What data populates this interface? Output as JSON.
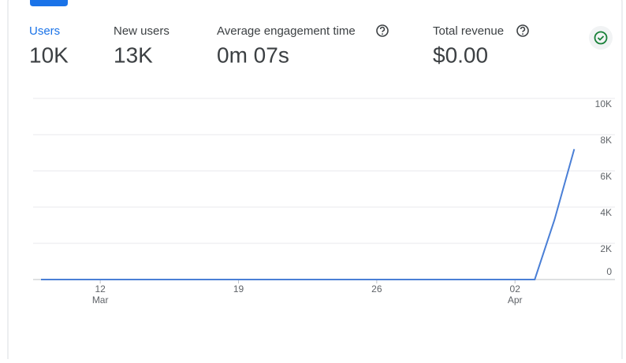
{
  "metrics": [
    {
      "label": "Users",
      "value": "10K"
    },
    {
      "label": "New users",
      "value": "13K"
    },
    {
      "label": "Average engagement time",
      "value": "0m 07s"
    },
    {
      "label": "Total revenue",
      "value": "$0.00"
    }
  ],
  "chart_data": {
    "type": "line",
    "categories": [
      null,
      null,
      null,
      "12",
      null,
      null,
      null,
      null,
      null,
      null,
      "19",
      null,
      null,
      null,
      null,
      null,
      null,
      "26",
      null,
      null,
      null,
      null,
      null,
      null,
      "02",
      null,
      null,
      null
    ],
    "category_months": [
      null,
      null,
      null,
      "Mar",
      null,
      null,
      null,
      null,
      null,
      null,
      null,
      null,
      null,
      null,
      null,
      null,
      null,
      null,
      null,
      null,
      null,
      null,
      null,
      null,
      "Apr",
      null,
      null,
      null
    ],
    "series": [
      {
        "name": "Users",
        "color": "#4a7fd6",
        "values": [
          0,
          0,
          0,
          0,
          0,
          0,
          0,
          0,
          0,
          0,
          0,
          0,
          0,
          0,
          0,
          0,
          0,
          0,
          0,
          0,
          0,
          0,
          0,
          0,
          0,
          0,
          3300,
          7200
        ]
      }
    ],
    "ylim": [
      0,
      10000
    ],
    "yticks": [
      0,
      {
        "value": 2000,
        "label": "2K"
      },
      {
        "value": 4000,
        "label": "4K"
      },
      {
        "value": 6000,
        "label": "6K"
      },
      {
        "value": 8000,
        "label": "8K"
      },
      {
        "value": 10000,
        "label": "10K"
      }
    ],
    "grid": true
  }
}
